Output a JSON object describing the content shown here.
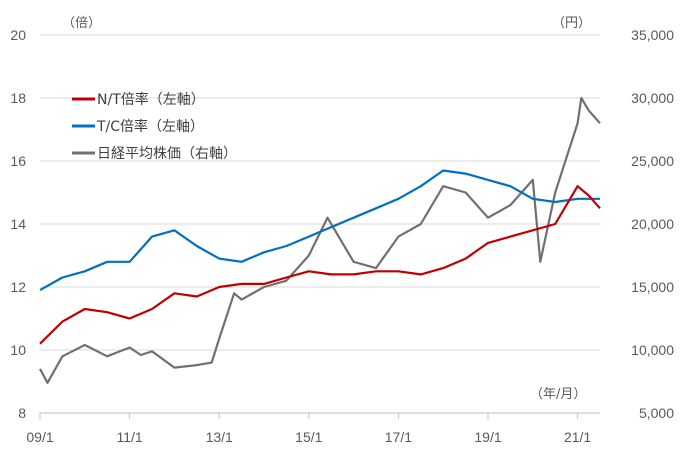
{
  "colors": {
    "nt": "#c00000",
    "tc": "#0070c0",
    "nikkei": "#707070",
    "grid": "#d9d9d9",
    "axis": "#bfbfbf"
  },
  "chart_data": {
    "type": "line",
    "left_unit": "（倍）",
    "right_unit": "（円）",
    "x_unit": "（年/月）",
    "x_ticks": [
      "09/1",
      "11/1",
      "13/1",
      "15/1",
      "17/1",
      "19/1",
      "21/1"
    ],
    "x_range": [
      "2009-01",
      "2021-07"
    ],
    "left_ylim": [
      8,
      20
    ],
    "left_ticks": [
      "8",
      "10",
      "12",
      "14",
      "16",
      "18",
      "20"
    ],
    "right_ylim": [
      5000,
      35000
    ],
    "right_ticks": [
      "5,000",
      "10,000",
      "15,000",
      "20,000",
      "25,000",
      "30,000",
      "35,000"
    ],
    "grid": true,
    "legend_position": "top-left",
    "series": [
      {
        "name": "N/T倍率（左軸）",
        "axis": "left",
        "x": [
          "2009-01",
          "2009-07",
          "2010-01",
          "2010-07",
          "2011-01",
          "2011-07",
          "2012-01",
          "2012-07",
          "2013-01",
          "2013-07",
          "2014-01",
          "2014-07",
          "2015-01",
          "2015-07",
          "2016-01",
          "2016-07",
          "2017-01",
          "2017-07",
          "2018-01",
          "2018-07",
          "2019-01",
          "2019-07",
          "2020-01",
          "2020-07",
          "2021-01",
          "2021-04",
          "2021-07"
        ],
        "y": [
          10.2,
          10.9,
          11.3,
          11.2,
          11.0,
          11.3,
          11.8,
          11.7,
          12.0,
          12.1,
          12.1,
          12.3,
          12.5,
          12.4,
          12.4,
          12.5,
          12.5,
          12.4,
          12.6,
          12.9,
          13.4,
          13.6,
          13.8,
          14.0,
          15.2,
          14.9,
          14.5
        ]
      },
      {
        "name": "T/C倍率（左軸）",
        "axis": "left",
        "x": [
          "2009-01",
          "2009-07",
          "2010-01",
          "2010-07",
          "2011-01",
          "2011-07",
          "2012-01",
          "2012-07",
          "2013-01",
          "2013-07",
          "2014-01",
          "2014-07",
          "2015-01",
          "2015-07",
          "2016-01",
          "2016-07",
          "2017-01",
          "2017-07",
          "2018-01",
          "2018-07",
          "2019-01",
          "2019-07",
          "2020-01",
          "2020-07",
          "2021-01",
          "2021-04",
          "2021-07"
        ],
        "y": [
          11.9,
          12.3,
          12.5,
          12.8,
          12.8,
          13.6,
          13.8,
          13.3,
          12.9,
          12.8,
          13.1,
          13.3,
          13.6,
          13.9,
          14.2,
          14.5,
          14.8,
          15.2,
          15.7,
          15.6,
          15.4,
          15.2,
          14.8,
          14.7,
          14.8,
          14.8,
          14.8
        ]
      },
      {
        "name": "日経平均株価（右軸）",
        "axis": "right",
        "x": [
          "2009-01",
          "2009-03",
          "2009-07",
          "2010-01",
          "2010-07",
          "2011-01",
          "2011-04",
          "2011-07",
          "2012-01",
          "2012-07",
          "2012-11",
          "2013-01",
          "2013-05",
          "2013-07",
          "2014-01",
          "2014-07",
          "2015-01",
          "2015-06",
          "2016-01",
          "2016-07",
          "2017-01",
          "2017-07",
          "2018-01",
          "2018-07",
          "2019-01",
          "2019-07",
          "2020-01",
          "2020-03",
          "2020-07",
          "2021-01",
          "2021-02",
          "2021-04",
          "2021-07"
        ],
        "y": [
          8500,
          7400,
          9500,
          10400,
          9500,
          10200,
          9600,
          9900,
          8600,
          8800,
          9000,
          10900,
          14500,
          14000,
          15000,
          15500,
          17500,
          20500,
          17000,
          16500,
          19000,
          20000,
          23000,
          22500,
          20500,
          21500,
          23500,
          17000,
          22500,
          28000,
          30000,
          29000,
          28000
        ]
      }
    ]
  }
}
